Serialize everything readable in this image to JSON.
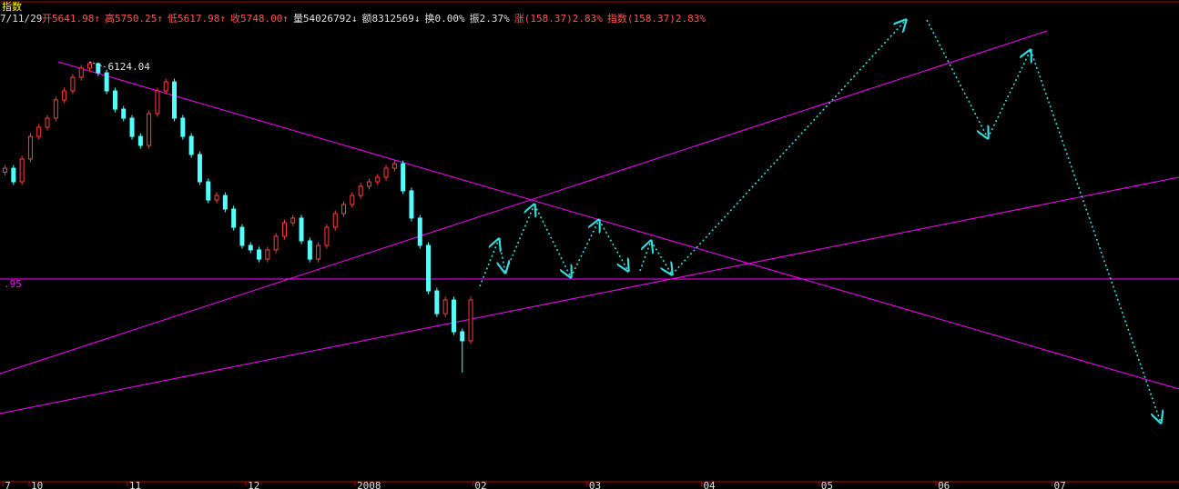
{
  "chart_data": {
    "type": "candlestick",
    "title": "指数",
    "date": "7/11/29",
    "info": [
      {
        "text": "开5641.98↑",
        "color": "#ff5555"
      },
      {
        "text": "高5750.25↑",
        "color": "#ff5555"
      },
      {
        "text": "低5617.98↑",
        "color": "#ff5555"
      },
      {
        "text": "收5748.00↑",
        "color": "#ff5555"
      },
      {
        "text": "量54026792↓",
        "color": "#e0e0e0"
      },
      {
        "text": "额8312569↓",
        "color": "#e0e0e0"
      },
      {
        "text": "换0.00%",
        "color": "#e0e0e0"
      },
      {
        "text": "振2.37%",
        "color": "#e0e0e0"
      },
      {
        "text": "涨(158.37)2.83%",
        "color": "#ff5555"
      },
      {
        "text": "指数(158.37)2.83%",
        "color": "#ff5555"
      }
    ],
    "open": [
      5440,
      5465,
      5381,
      5522,
      5662,
      5719,
      5775,
      5888,
      5944,
      6028,
      6085,
      6113,
      6056,
      5944,
      5831,
      5775,
      5662,
      5606,
      5803,
      5944,
      6000,
      5775,
      5662,
      5550,
      5381,
      5268,
      5296,
      5212,
      5099,
      4987,
      4959,
      4902,
      4959,
      5043,
      5127,
      5156,
      5015,
      4902,
      4987,
      5099,
      5184,
      5240,
      5296,
      5353,
      5381,
      5409,
      5465,
      5493,
      5325,
      5156,
      4987,
      4705,
      4564,
      4649,
      4452,
      4396
    ],
    "high": [
      5485,
      5485,
      5542,
      5682,
      5739,
      5795,
      5908,
      5964,
      6048,
      6105,
      6124.04,
      6120,
      6076,
      5964,
      5851,
      5795,
      5682,
      5823,
      5964,
      6020,
      6020,
      5795,
      5682,
      5570,
      5401,
      5316,
      5316,
      5232,
      5119,
      5007,
      4979,
      4979,
      5063,
      5147,
      5176,
      5176,
      5035,
      5007,
      5119,
      5204,
      5260,
      5316,
      5373,
      5401,
      5429,
      5485,
      5513,
      5513,
      5345,
      5176,
      5007,
      4725,
      4669,
      4669,
      4472,
      4669
    ],
    "low": [
      5420,
      5361,
      5361,
      5502,
      5642,
      5699,
      5755,
      5868,
      5924,
      6008,
      6065,
      6036,
      5924,
      5811,
      5755,
      5642,
      5586,
      5586,
      5783,
      5924,
      5755,
      5642,
      5530,
      5361,
      5248,
      5248,
      5192,
      5079,
      4967,
      4939,
      4882,
      4882,
      4939,
      5023,
      5107,
      4995,
      4882,
      4882,
      4967,
      5079,
      5164,
      5220,
      5276,
      5333,
      5361,
      5389,
      5445,
      5305,
      5136,
      4967,
      4685,
      4544,
      4544,
      4432,
      4200,
      4376
    ],
    "close": [
      5465,
      5381,
      5522,
      5662,
      5719,
      5775,
      5888,
      5944,
      6028,
      6085,
      6113,
      6056,
      5944,
      5831,
      5775,
      5662,
      5606,
      5803,
      5944,
      6000,
      5775,
      5662,
      5550,
      5381,
      5268,
      5296,
      5212,
      5099,
      4987,
      4959,
      4902,
      4959,
      5043,
      5127,
      5156,
      5015,
      4902,
      4987,
      5099,
      5184,
      5240,
      5296,
      5353,
      5381,
      5409,
      5465,
      5493,
      5325,
      5156,
      4987,
      4705,
      4564,
      4649,
      4452,
      4396,
      4649
    ],
    "up_color": "#ff3c3c",
    "down_color": "#54ffff",
    "ylim": [
      3523,
      6507
    ],
    "xlim": [
      -0.54,
      138.7
    ],
    "xticks": [
      {
        "value": -0.2,
        "label": "7"
      },
      {
        "value": 2.9,
        "label": "10"
      },
      {
        "value": 14.5,
        "label": "11"
      },
      {
        "value": 28.5,
        "label": "12"
      },
      {
        "value": 41.4,
        "label": "2008"
      },
      {
        "value": 55.3,
        "label": "02"
      },
      {
        "value": 68.8,
        "label": "03"
      },
      {
        "value": 82.3,
        "label": "04"
      },
      {
        "value": 96.2,
        "label": "05"
      },
      {
        "value": 110,
        "label": "06"
      },
      {
        "value": 123.7,
        "label": "07"
      }
    ],
    "level_label": ".95"
  }
}
